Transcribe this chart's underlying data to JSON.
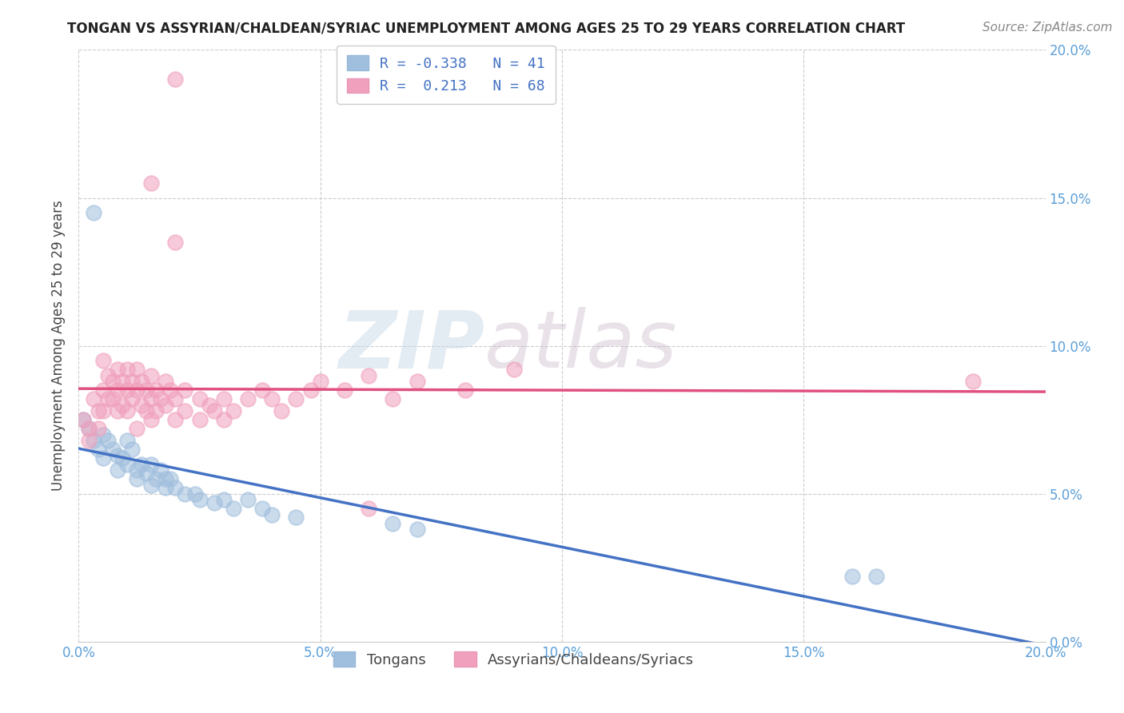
{
  "title": "TONGAN VS ASSYRIAN/CHALDEAN/SYRIAC UNEMPLOYMENT AMONG AGES 25 TO 29 YEARS CORRELATION CHART",
  "source": "Source: ZipAtlas.com",
  "ylabel": "Unemployment Among Ages 25 to 29 years",
  "xlim": [
    0.0,
    0.2
  ],
  "ylim": [
    0.0,
    0.2
  ],
  "xticks": [
    0.0,
    0.05,
    0.1,
    0.15,
    0.2
  ],
  "yticks": [
    0.0,
    0.05,
    0.1,
    0.15,
    0.2
  ],
  "xtick_labels": [
    "0.0%",
    "5.0%",
    "10.0%",
    "15.0%",
    "20.0%"
  ],
  "ytick_labels": [
    "0.0%",
    "5.0%",
    "10.0%",
    "15.0%",
    "20.0%"
  ],
  "legend_entries": [
    {
      "label": "Tongans",
      "R": "-0.338",
      "N": "41",
      "color": "#a8c8e8"
    },
    {
      "label": "Assyrians/Chaldeans/Syriacs",
      "R": "0.213",
      "N": "68",
      "color": "#f4a8bf"
    }
  ],
  "tongan_scatter": [
    [
      0.001,
      0.075
    ],
    [
      0.002,
      0.072
    ],
    [
      0.003,
      0.068
    ],
    [
      0.004,
      0.065
    ],
    [
      0.005,
      0.07
    ],
    [
      0.005,
      0.062
    ],
    [
      0.006,
      0.068
    ],
    [
      0.007,
      0.065
    ],
    [
      0.008,
      0.063
    ],
    [
      0.008,
      0.058
    ],
    [
      0.009,
      0.062
    ],
    [
      0.01,
      0.068
    ],
    [
      0.01,
      0.06
    ],
    [
      0.011,
      0.065
    ],
    [
      0.012,
      0.058
    ],
    [
      0.012,
      0.055
    ],
    [
      0.013,
      0.06
    ],
    [
      0.014,
      0.057
    ],
    [
      0.015,
      0.06
    ],
    [
      0.015,
      0.053
    ],
    [
      0.016,
      0.055
    ],
    [
      0.017,
      0.058
    ],
    [
      0.018,
      0.052
    ],
    [
      0.018,
      0.055
    ],
    [
      0.019,
      0.055
    ],
    [
      0.02,
      0.052
    ],
    [
      0.022,
      0.05
    ],
    [
      0.024,
      0.05
    ],
    [
      0.025,
      0.048
    ],
    [
      0.028,
      0.047
    ],
    [
      0.03,
      0.048
    ],
    [
      0.032,
      0.045
    ],
    [
      0.035,
      0.048
    ],
    [
      0.038,
      0.045
    ],
    [
      0.04,
      0.043
    ],
    [
      0.045,
      0.042
    ],
    [
      0.065,
      0.04
    ],
    [
      0.07,
      0.038
    ],
    [
      0.16,
      0.022
    ],
    [
      0.165,
      0.022
    ],
    [
      0.003,
      0.145
    ]
  ],
  "assyrian_scatter": [
    [
      0.001,
      0.075
    ],
    [
      0.002,
      0.072
    ],
    [
      0.002,
      0.068
    ],
    [
      0.003,
      0.082
    ],
    [
      0.004,
      0.078
    ],
    [
      0.004,
      0.072
    ],
    [
      0.005,
      0.095
    ],
    [
      0.005,
      0.085
    ],
    [
      0.005,
      0.078
    ],
    [
      0.006,
      0.09
    ],
    [
      0.006,
      0.082
    ],
    [
      0.007,
      0.088
    ],
    [
      0.007,
      0.082
    ],
    [
      0.008,
      0.092
    ],
    [
      0.008,
      0.085
    ],
    [
      0.008,
      0.078
    ],
    [
      0.009,
      0.088
    ],
    [
      0.009,
      0.08
    ],
    [
      0.01,
      0.092
    ],
    [
      0.01,
      0.085
    ],
    [
      0.01,
      0.078
    ],
    [
      0.011,
      0.088
    ],
    [
      0.011,
      0.082
    ],
    [
      0.012,
      0.092
    ],
    [
      0.012,
      0.085
    ],
    [
      0.012,
      0.072
    ],
    [
      0.013,
      0.088
    ],
    [
      0.013,
      0.08
    ],
    [
      0.014,
      0.085
    ],
    [
      0.014,
      0.078
    ],
    [
      0.015,
      0.09
    ],
    [
      0.015,
      0.082
    ],
    [
      0.015,
      0.075
    ],
    [
      0.016,
      0.085
    ],
    [
      0.016,
      0.078
    ],
    [
      0.017,
      0.082
    ],
    [
      0.018,
      0.088
    ],
    [
      0.018,
      0.08
    ],
    [
      0.019,
      0.085
    ],
    [
      0.02,
      0.082
    ],
    [
      0.02,
      0.075
    ],
    [
      0.022,
      0.085
    ],
    [
      0.022,
      0.078
    ],
    [
      0.025,
      0.082
    ],
    [
      0.025,
      0.075
    ],
    [
      0.027,
      0.08
    ],
    [
      0.028,
      0.078
    ],
    [
      0.03,
      0.082
    ],
    [
      0.03,
      0.075
    ],
    [
      0.032,
      0.078
    ],
    [
      0.035,
      0.082
    ],
    [
      0.038,
      0.085
    ],
    [
      0.04,
      0.082
    ],
    [
      0.042,
      0.078
    ],
    [
      0.045,
      0.082
    ],
    [
      0.048,
      0.085
    ],
    [
      0.05,
      0.088
    ],
    [
      0.055,
      0.085
    ],
    [
      0.06,
      0.09
    ],
    [
      0.065,
      0.082
    ],
    [
      0.07,
      0.088
    ],
    [
      0.08,
      0.085
    ],
    [
      0.09,
      0.092
    ],
    [
      0.185,
      0.088
    ],
    [
      0.02,
      0.19
    ],
    [
      0.015,
      0.155
    ],
    [
      0.02,
      0.135
    ],
    [
      0.06,
      0.045
    ]
  ],
  "tongan_color": "#a0bedd",
  "assyrian_color": "#f0a0bc",
  "tongan_line_color": "#4472c4",
  "assyrian_line_color": "#e05080",
  "watermark_zip": "ZIP",
  "watermark_atlas": "atlas",
  "background_color": "#ffffff",
  "grid_color": "#cccccc",
  "tick_color": "#5b9fd8",
  "title_color": "#222222",
  "ylabel_color": "#444444",
  "legend_R_color": "#4472c4",
  "legend_N_color": "#4472c4"
}
